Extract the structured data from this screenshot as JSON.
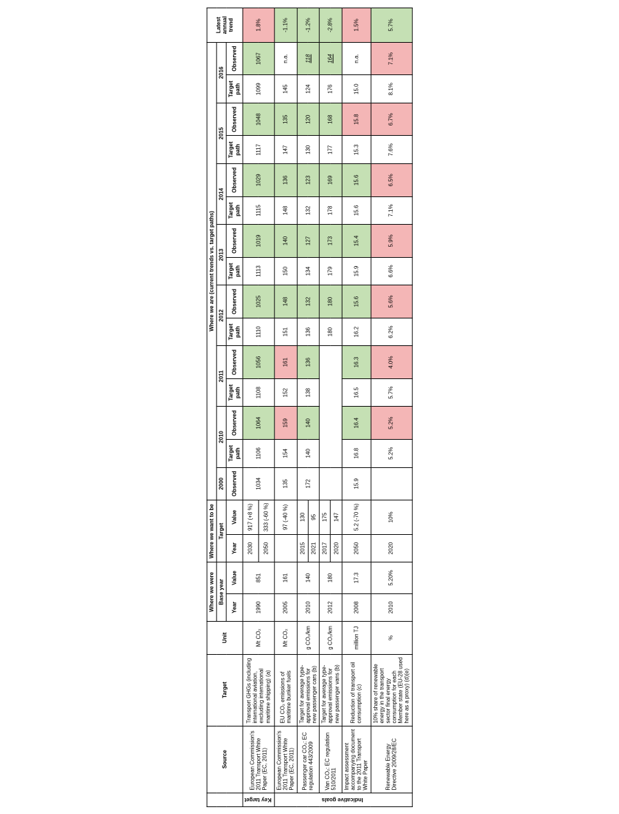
{
  "colors": {
    "good": "#c5e0b4",
    "bad": "#f4b6b6",
    "header_bg": "#ffffff",
    "border": "#000000"
  },
  "section_labels": {
    "key_target": "Key target",
    "indicative_goals": "Indicative goals"
  },
  "headers": {
    "source": "Source",
    "target": "Target",
    "unit": "Unit",
    "where_we_were": "Where we were",
    "base_year": "Base year",
    "year": "Year",
    "value": "Value",
    "where_we_want": "Where we want to be",
    "target_col": "Target",
    "where_we_are": "Where we are (current trends vs. target paths)",
    "y2000": "2000",
    "y2010": "2010",
    "y2011": "2011",
    "y2012": "2012",
    "y2013": "2013",
    "y2014": "2014",
    "y2015": "2015",
    "y2016": "2016",
    "observed": "Observed",
    "target_path": "Target path",
    "latest_trend": "Latest annual trend"
  },
  "col_widths": {
    "rot": 18,
    "source": 86,
    "target": 92,
    "unit": 42,
    "by_year": 36,
    "by_value": 40,
    "tg_year": 36,
    "tg_value": 44,
    "obs2000": 42,
    "tp": 36,
    "obs": 42,
    "trend": 44
  },
  "rows": [
    {
      "section": "key",
      "source": "European Commission's 2011 Transport White Paper (EC, 2011)",
      "target": "Transport GHGs (including international aviation, excluding international maritime shipping) (a)",
      "unit": "Mt CO₂",
      "base_year": "1990",
      "base_value": "851",
      "targets": [
        {
          "year": "2030",
          "value": "917 (+8 %)"
        },
        {
          "year": "2050",
          "value": "333 (-60 %)"
        }
      ],
      "obs2000": "1034",
      "cells": [
        {
          "tp": "1106",
          "obs": "1064",
          "cls": "good"
        },
        {
          "tp": "1108",
          "obs": "1056",
          "cls": "good"
        },
        {
          "tp": "1110",
          "obs": "1025",
          "cls": "good"
        },
        {
          "tp": "1113",
          "obs": "1019",
          "cls": "good"
        },
        {
          "tp": "1115",
          "obs": "1029",
          "cls": "good"
        },
        {
          "tp": "1117",
          "obs": "1048",
          "cls": "good"
        },
        {
          "tp": "1099",
          "obs": "1067",
          "cls": "good"
        }
      ],
      "trend": "1.8%",
      "trend_cls": "bad"
    },
    {
      "section": "ind",
      "source": "European Commission's 2011 Transport White Paper (EC, 2011)",
      "target": "EU CO₂ emissions of maritime bunker fuels",
      "unit": "Mt CO₂",
      "base_year": "2005",
      "base_value": "161",
      "targets": [
        {
          "year": "",
          "value": "97 (-40 %)"
        }
      ],
      "obs2000": "135",
      "cells": [
        {
          "tp": "154",
          "obs": "159",
          "cls": "bad"
        },
        {
          "tp": "152",
          "obs": "161",
          "cls": "bad"
        },
        {
          "tp": "151",
          "obs": "148",
          "cls": "good"
        },
        {
          "tp": "150",
          "obs": "140",
          "cls": "good"
        },
        {
          "tp": "148",
          "obs": "136",
          "cls": "good"
        },
        {
          "tp": "147",
          "obs": "135",
          "cls": "good"
        },
        {
          "tp": "145",
          "obs": "n.a.",
          "cls": "none"
        }
      ],
      "trend": "-1.1%",
      "trend_cls": "good"
    },
    {
      "section": "ind",
      "source": "Passenger car CO₂: EC regulation 443/2009",
      "target": "Target for average type-approval emissions for new passenger cars (b)",
      "unit": "g CO₂/km",
      "base_year": "2010",
      "base_value": "140",
      "targets": [
        {
          "year": "2015",
          "value": "130"
        },
        {
          "year": "2021",
          "value": "95"
        }
      ],
      "obs2000": "172",
      "cells": [
        {
          "tp": "140",
          "obs": "140",
          "cls": "good"
        },
        {
          "tp": "138",
          "obs": "136",
          "cls": "good"
        },
        {
          "tp": "136",
          "obs": "132",
          "cls": "good"
        },
        {
          "tp": "134",
          "obs": "127",
          "cls": "good"
        },
        {
          "tp": "132",
          "obs": "123",
          "cls": "good"
        },
        {
          "tp": "130",
          "obs": "120",
          "cls": "good"
        },
        {
          "tp": "124",
          "obs": "118",
          "cls": "good",
          "underline": true
        }
      ],
      "trend": "-1.2%",
      "trend_cls": "good"
    },
    {
      "section": "ind",
      "source": "Van CO₂: EC regulation 510/2011",
      "target": "Target for average type-approval emissions for new passenger vans (b)",
      "unit": "g CO₂/km",
      "base_year": "2012",
      "base_value": "180",
      "targets": [
        {
          "year": "2017",
          "value": "175"
        },
        {
          "year": "2020",
          "value": "147"
        }
      ],
      "obs2000": "",
      "cells": [
        {
          "tp": "",
          "obs": "",
          "cls": "none",
          "merged_empty": true
        },
        {
          "tp": "",
          "obs": "",
          "cls": "none",
          "merged_empty": true
        },
        {
          "tp": "180",
          "obs": "180",
          "cls": "good"
        },
        {
          "tp": "179",
          "obs": "173",
          "cls": "good"
        },
        {
          "tp": "178",
          "obs": "169",
          "cls": "good"
        },
        {
          "tp": "177",
          "obs": "168",
          "cls": "good"
        },
        {
          "tp": "176",
          "obs": "164",
          "cls": "good",
          "underline": true
        }
      ],
      "trend": "-2.8%",
      "trend_cls": "good"
    },
    {
      "section": "ind",
      "source": "Impact assessment accompanying document to the 2011 Transport White Paper",
      "target": "Reduction of transport oil consumption (c)",
      "unit": "million TJ",
      "base_year": "2008",
      "base_value": "17.3",
      "targets": [
        {
          "year": "2050",
          "value": "5.2 (-70 %)"
        }
      ],
      "obs2000": "15.9",
      "cells": [
        {
          "tp": "16.8",
          "obs": "16.4",
          "cls": "good"
        },
        {
          "tp": "16.5",
          "obs": "16.3",
          "cls": "good"
        },
        {
          "tp": "16.2",
          "obs": "15.6",
          "cls": "good"
        },
        {
          "tp": "15.9",
          "obs": "15.4",
          "cls": "good"
        },
        {
          "tp": "15.6",
          "obs": "15.6",
          "cls": "good"
        },
        {
          "tp": "15.3",
          "obs": "15.8",
          "cls": "bad"
        },
        {
          "tp": "15.0",
          "obs": "n.a.",
          "cls": "none"
        }
      ],
      "trend": "1.5%",
      "trend_cls": "bad"
    },
    {
      "section": "ind",
      "source": "Renewable Energy Directive 2009/28/EC",
      "target": "10% share of renewable energy in the transport sector final energy consumption for each Member state (EU-28 used here as a proxy) (d)(e)",
      "unit": "%",
      "base_year": "2010",
      "base_value": "5.20%",
      "targets": [
        {
          "year": "2020",
          "value": "10%"
        }
      ],
      "obs2000": "",
      "cells": [
        {
          "tp": "5.2%",
          "obs": "5.2%",
          "cls": "bad"
        },
        {
          "tp": "5.7%",
          "obs": "4.0%",
          "cls": "bad"
        },
        {
          "tp": "6.2%",
          "obs": "5.6%",
          "cls": "bad"
        },
        {
          "tp": "6.6%",
          "obs": "5.9%",
          "cls": "bad"
        },
        {
          "tp": "7.1%",
          "obs": "6.5%",
          "cls": "bad"
        },
        {
          "tp": "7.6%",
          "obs": "6.7%",
          "cls": "bad"
        },
        {
          "tp": "8.1%",
          "obs": "7.1%",
          "cls": "bad"
        }
      ],
      "trend": "5.7%",
      "trend_cls": "good"
    }
  ]
}
